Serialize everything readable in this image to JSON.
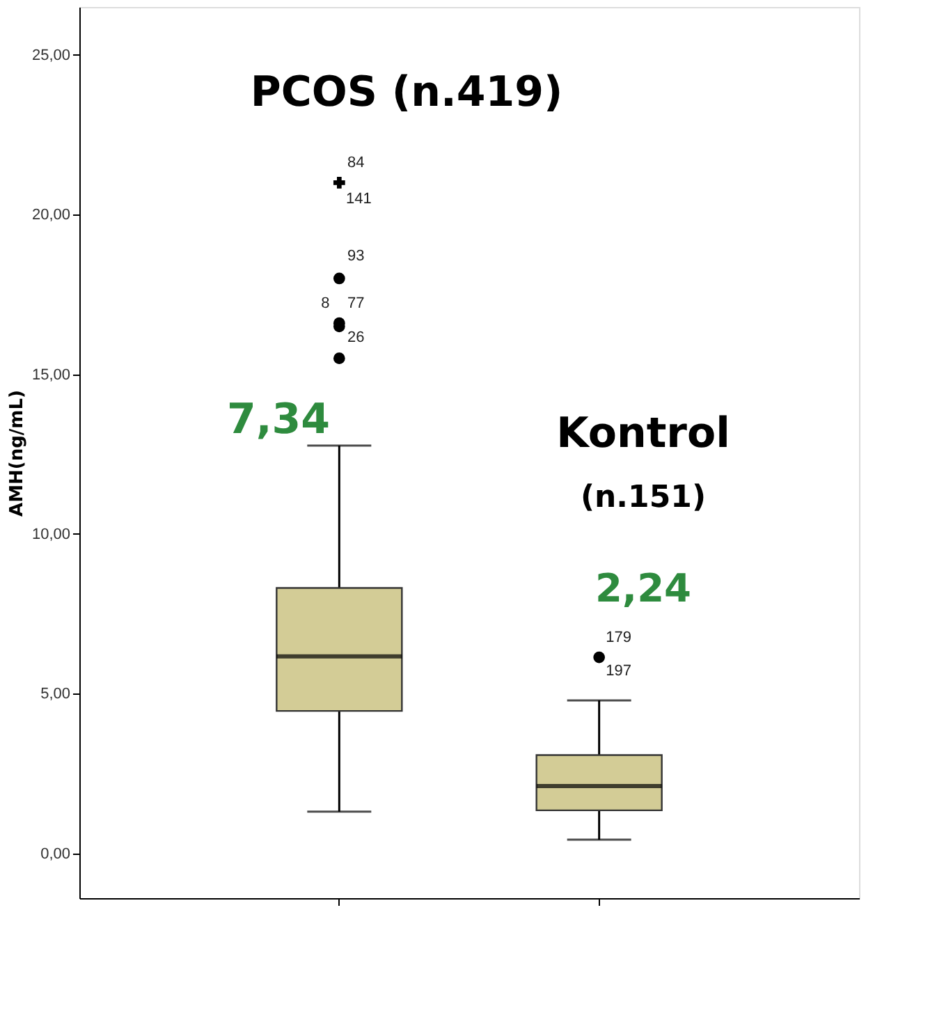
{
  "chart_data": {
    "type": "box",
    "categories": [
      null,
      null
    ],
    "ylabel": "AMH(ng/mL)",
    "ylim": [
      -1.4,
      26.5
    ],
    "yticks": [
      {
        "value": 0,
        "label": "0,00"
      },
      {
        "value": 5,
        "label": "5,00"
      },
      {
        "value": 10,
        "label": "10,00"
      },
      {
        "value": 15,
        "label": "15,00"
      },
      {
        "value": 20,
        "label": "20,00"
      },
      {
        "value": 25,
        "label": "25,00"
      }
    ],
    "tick_labels": "y",
    "grid": false,
    "series": [
      {
        "color": "#d3cc96",
        "boxes": [
          {
            "low": 1.31,
            "q1": 4.46,
            "median": 6.17,
            "q3": 8.31,
            "high": 12.77,
            "outliers": [
              21.0,
              18.0,
              16.6,
              16.5,
              15.5
            ]
          },
          {
            "low": 0.43,
            "q1": 1.35,
            "median": 2.11,
            "q3": 3.08,
            "high": 4.79,
            "outliers": [
              6.14
            ]
          }
        ]
      }
    ],
    "annotations": [
      "PCOS (n.419)",
      "7,34",
      "Kontrol",
      "(n.151)",
      "2,24",
      "84",
      "141",
      "93",
      "8",
      "77",
      "26",
      "179",
      "197"
    ]
  }
}
